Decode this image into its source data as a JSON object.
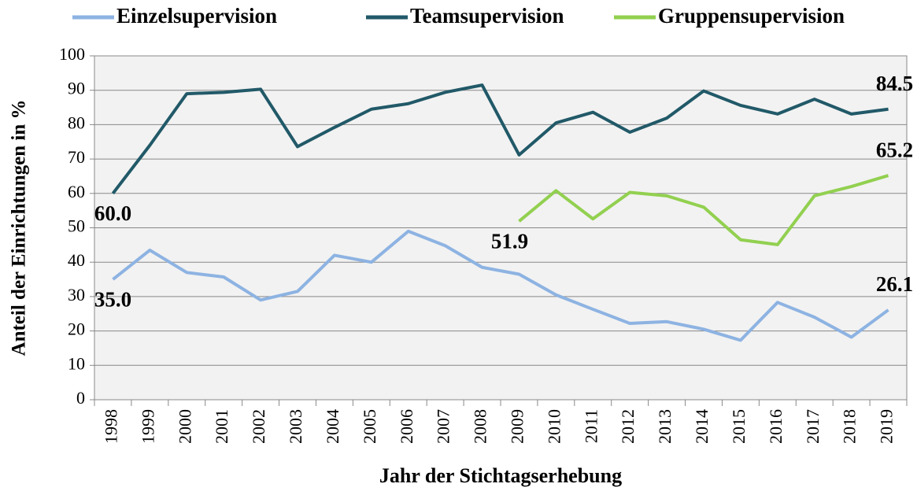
{
  "chart_data": {
    "type": "line",
    "xlabel": "Jahr der Stichtagserhebung",
    "ylabel": "Anteil der Einrichtungen in %",
    "categories": [
      "1998",
      "1999",
      "2000",
      "2001",
      "2002",
      "2003",
      "2004",
      "2005",
      "2006",
      "2007",
      "2008",
      "2009",
      "2010",
      "2011",
      "2012",
      "2013",
      "2014",
      "2015",
      "2016",
      "2017",
      "2018",
      "2019"
    ],
    "ylim": [
      0,
      100
    ],
    "yticks": [
      0,
      10,
      20,
      30,
      40,
      50,
      60,
      70,
      80,
      90,
      100
    ],
    "grid": true,
    "legend": "top",
    "series": [
      {
        "name": "Einzelsupervision",
        "color": "#8db3e2",
        "values": [
          35.0,
          43.5,
          37.0,
          35.7,
          29.0,
          31.5,
          42.0,
          40.0,
          49.0,
          44.8,
          38.5,
          36.5,
          30.5,
          26.3,
          22.2,
          22.7,
          20.5,
          17.3,
          28.3,
          24.0,
          18.2,
          26.1
        ],
        "value_labels": [
          "35.0",
          null,
          null,
          null,
          null,
          null,
          null,
          null,
          null,
          null,
          null,
          null,
          null,
          null,
          null,
          null,
          null,
          null,
          null,
          null,
          null,
          "26.1"
        ]
      },
      {
        "name": "Teamsupervision",
        "color": "#215968",
        "values": [
          60.0,
          74.0,
          89.0,
          89.4,
          90.3,
          73.6,
          79.2,
          84.5,
          86.1,
          89.4,
          91.5,
          71.2,
          80.5,
          83.6,
          77.8,
          81.9,
          89.8,
          85.6,
          83.1,
          87.4,
          83.1,
          84.5
        ],
        "value_labels": [
          "60.0",
          null,
          null,
          null,
          null,
          null,
          null,
          null,
          null,
          null,
          null,
          null,
          null,
          null,
          null,
          null,
          null,
          null,
          null,
          null,
          null,
          "84.5"
        ]
      },
      {
        "name": "Gruppensupervision",
        "color": "#92d050",
        "values": [
          null,
          null,
          null,
          null,
          null,
          null,
          null,
          null,
          null,
          null,
          null,
          51.9,
          60.8,
          52.6,
          60.3,
          59.3,
          56.0,
          46.5,
          45.1,
          59.3,
          62.0,
          65.2
        ],
        "value_labels": [
          null,
          null,
          null,
          null,
          null,
          null,
          null,
          null,
          null,
          null,
          null,
          "51.9",
          null,
          null,
          null,
          null,
          null,
          null,
          null,
          null,
          null,
          "65.2"
        ]
      }
    ]
  }
}
